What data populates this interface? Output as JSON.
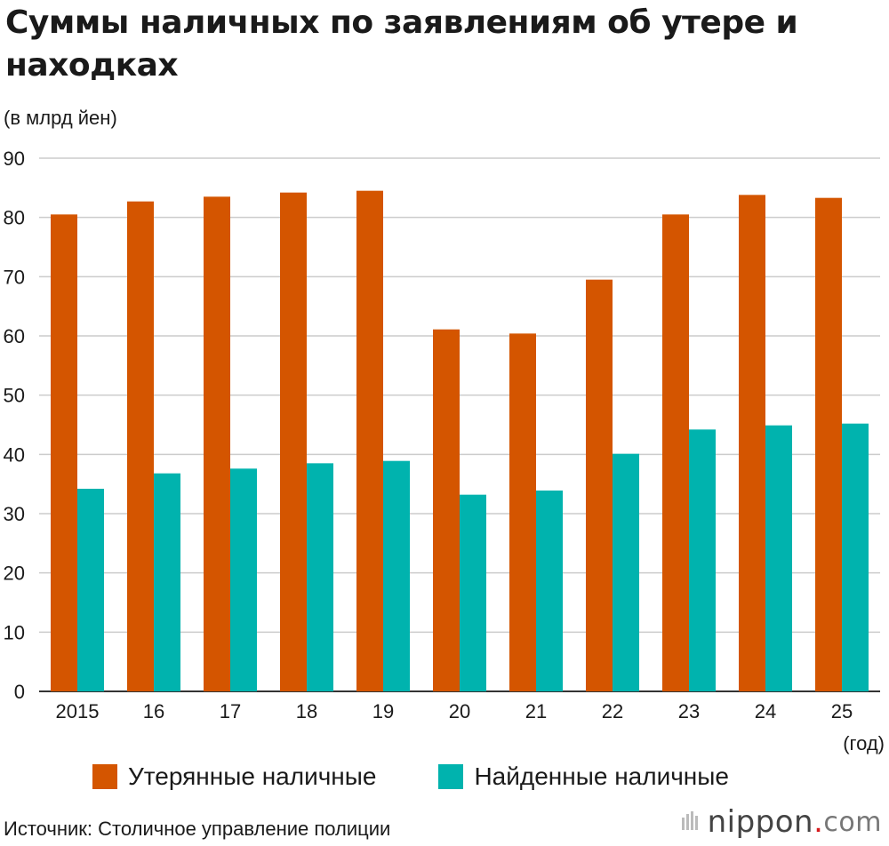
{
  "title": "Суммы наличных по заявлениям об утере и находках",
  "unit_label": "(в млрд йен)",
  "source": "Источник: Столичное управление полиции",
  "logo": {
    "name": "nippon",
    "dot": ".",
    "tld": "com"
  },
  "colors": {
    "lost": "#d45500",
    "found": "#00b3ae",
    "grid": "#cccccc",
    "axis": "#333333"
  },
  "chart_data": {
    "type": "bar",
    "categories": [
      "2015",
      "16",
      "17",
      "18",
      "19",
      "20",
      "21",
      "22",
      "23",
      "24",
      "25"
    ],
    "x_unit": "(год)",
    "series": [
      {
        "name": "Утерянные наличные",
        "values": [
          80.5,
          82.7,
          83.5,
          84.2,
          84.5,
          61.1,
          60.4,
          69.5,
          80.5,
          83.8,
          83.3
        ]
      },
      {
        "name": "Найденные наличные",
        "values": [
          34.2,
          36.8,
          37.6,
          38.5,
          38.9,
          33.2,
          33.9,
          40.1,
          44.2,
          44.9,
          45.2
        ]
      }
    ],
    "ylim": [
      0,
      90
    ],
    "yticks": [
      0,
      10,
      20,
      30,
      40,
      50,
      60,
      70,
      80,
      90
    ],
    "grid": true,
    "legend_position": "bottom"
  }
}
